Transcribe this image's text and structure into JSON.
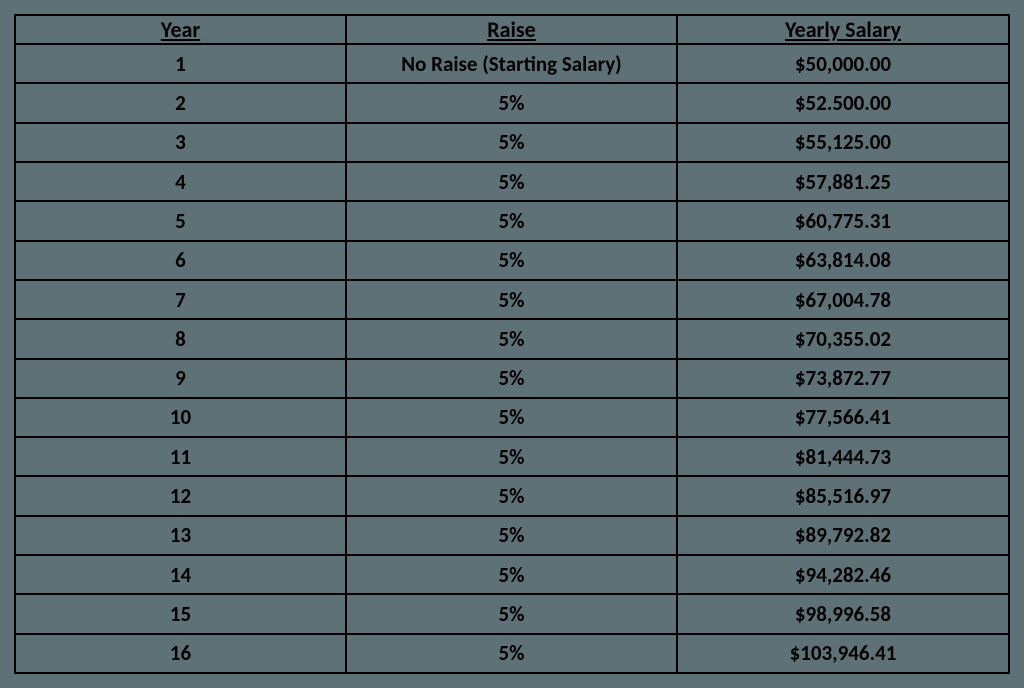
{
  "table": {
    "type": "table",
    "background_color": "#5d7176",
    "border_color": "#000000",
    "border_width": 2,
    "text_color": "#000000",
    "header_fontsize": 22,
    "cell_fontsize": 21,
    "font_family": "Calibri",
    "header_font_weight": "bold",
    "header_underline": true,
    "cell_font_weight": "bold",
    "column_widths_percent": [
      33.3,
      33.3,
      33.4
    ],
    "columns": [
      "Year",
      "Raise",
      "Yearly Salary"
    ],
    "rows": [
      [
        "1",
        "No Raise (Starting Salary)",
        "$50,000.00"
      ],
      [
        "2",
        "5%",
        "$52.500.00"
      ],
      [
        "3",
        "5%",
        "$55,125.00"
      ],
      [
        "4",
        "5%",
        "$57,881.25"
      ],
      [
        "5",
        "5%",
        "$60,775.31"
      ],
      [
        "6",
        "5%",
        "$63,814.08"
      ],
      [
        "7",
        "5%",
        "$67,004.78"
      ],
      [
        "8",
        "5%",
        "$70,355.02"
      ],
      [
        "9",
        "5%",
        "$73,872.77"
      ],
      [
        "10",
        "5%",
        "$77,566.41"
      ],
      [
        "11",
        "5%",
        "$81,444.73"
      ],
      [
        "12",
        "5%",
        "$85,516.97"
      ],
      [
        "13",
        "5%",
        "$89,792.82"
      ],
      [
        "14",
        "5%",
        "$94,282.46"
      ],
      [
        "15",
        "5%",
        "$98,996.58"
      ],
      [
        "16",
        "5%",
        "$103,946.41"
      ]
    ]
  }
}
